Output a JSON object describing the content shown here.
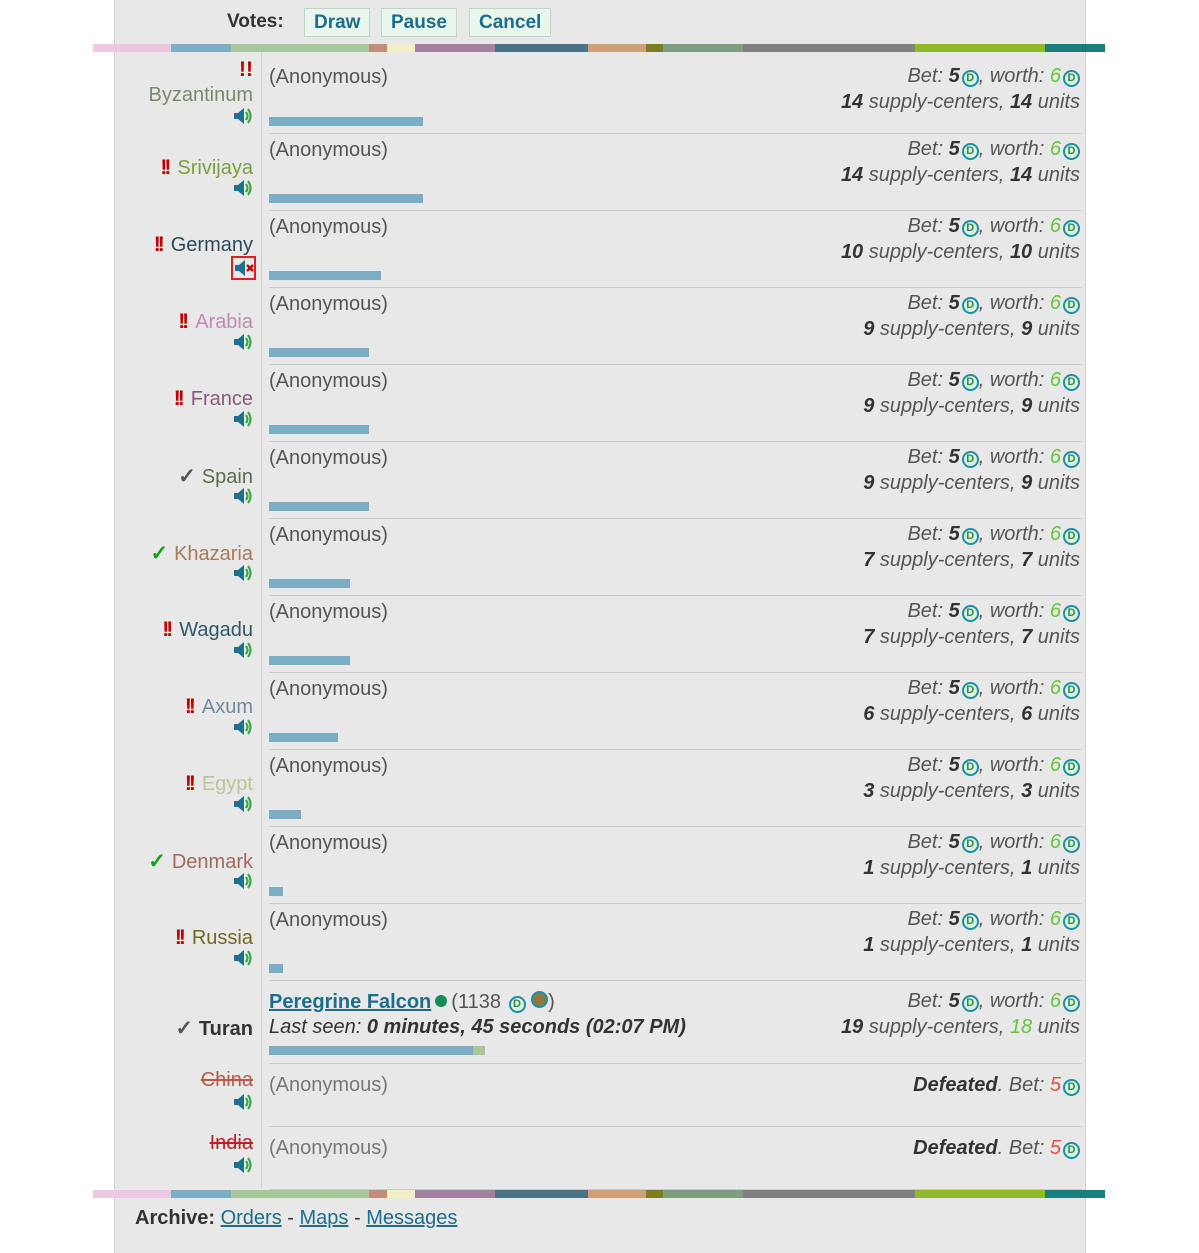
{
  "votes": {
    "label": "Votes:",
    "buttons": [
      "Draw",
      "Pause",
      "Cancel"
    ]
  },
  "stripe_colors": [
    "#eec8e2",
    "#7badc4",
    "#a7c79d",
    "#c28b7a",
    "#f2efc2",
    "#a3809d",
    "#4a7388",
    "#d09f76",
    "#7d7e24",
    "#7e9d7e",
    "#808080",
    "#8fb929",
    "#1a7f7c"
  ],
  "players": [
    {
      "country": "Byzantinum",
      "country_color": "#7a8a6a",
      "status": "!!",
      "status_pos": "above",
      "player": "(Anonymous)",
      "bet": "5",
      "worth": "6",
      "supply": "14",
      "units": "14",
      "bar_pct": 21
    },
    {
      "country": "Srivijaya",
      "country_color": "#7f9e3f",
      "status": "!!",
      "player": "(Anonymous)",
      "bet": "5",
      "worth": "6",
      "supply": "14",
      "units": "14",
      "bar_pct": 21
    },
    {
      "country": "Germany",
      "country_color": "#2d4a5a",
      "status": "!!",
      "muted": true,
      "player": "(Anonymous)",
      "bet": "5",
      "worth": "6",
      "supply": "10",
      "units": "10",
      "bar_pct": 15.3
    },
    {
      "country": "Arabia",
      "country_color": "#c28ab4",
      "status": "!!",
      "player": "(Anonymous)",
      "bet": "5",
      "worth": "6",
      "supply": "9",
      "units": "9",
      "bar_pct": 13.6
    },
    {
      "country": "France",
      "country_color": "#8a5a7e",
      "status": "!!",
      "player": "(Anonymous)",
      "bet": "5",
      "worth": "6",
      "supply": "9",
      "units": "9",
      "bar_pct": 13.6
    },
    {
      "country": "Spain",
      "country_color": "#5a6e4a",
      "status": "✓",
      "status_style": "grey",
      "player": "(Anonymous)",
      "bet": "5",
      "worth": "6",
      "supply": "9",
      "units": "9",
      "bar_pct": 13.6
    },
    {
      "country": "Khazaria",
      "country_color": "#a87c56",
      "status": "✓",
      "status_style": "green",
      "player": "(Anonymous)",
      "bet": "5",
      "worth": "6",
      "supply": "7",
      "units": "7",
      "bar_pct": 11.1
    },
    {
      "country": "Wagadu",
      "country_color": "#2d5a66",
      "status": "!!",
      "player": "(Anonymous)",
      "bet": "5",
      "worth": "6",
      "supply": "7",
      "units": "7",
      "bar_pct": 11.1
    },
    {
      "country": "Axum",
      "country_color": "#6e8ea0",
      "status": "!!",
      "player": "(Anonymous)",
      "bet": "5",
      "worth": "6",
      "supply": "6",
      "units": "6",
      "bar_pct": 9.4
    },
    {
      "country": "Egypt",
      "country_color": "#c2c29a",
      "status": "!!",
      "player": "(Anonymous)",
      "bet": "5",
      "worth": "6",
      "supply": "3",
      "units": "3",
      "bar_pct": 4.4
    },
    {
      "country": "Denmark",
      "country_color": "#a06a5e",
      "status": "✓",
      "status_style": "green",
      "player": "(Anonymous)",
      "bet": "5",
      "worth": "6",
      "supply": "1",
      "units": "1",
      "bar_pct": 1.9
    },
    {
      "country": "Russia",
      "country_color": "#6e6a1e",
      "status": "!!",
      "player": "(Anonymous)",
      "bet": "5",
      "worth": "6",
      "supply": "1",
      "units": "1",
      "bar_pct": 1.9
    }
  ],
  "me": {
    "country": "Turan",
    "status": "✓",
    "name": "Peregrine Falcon",
    "points_open": "(1138",
    "points_close": ")",
    "last_seen_label": "Last seen:",
    "last_seen": "0 minutes, 45 seconds (02:07 PM)",
    "bet": "5",
    "worth": "6",
    "supply": "19",
    "units": "18",
    "bar_pct": 27.8,
    "bar_extra_pct": 1.7
  },
  "defeated": [
    {
      "country": "China",
      "country_color": "#b85a4a",
      "player": "(Anonymous)",
      "defeated_label": "Defeated",
      "bet": "5"
    },
    {
      "country": "India",
      "country_color": "#c02020",
      "player": "(Anonymous)",
      "defeated_label": "Defeated",
      "bet": "5"
    }
  ],
  "labels": {
    "bet": "Bet:",
    "worth": "worth:",
    "supply_centers": "supply-centers,",
    "units": "units",
    "coin": "D"
  },
  "archive": {
    "label": "Archive:",
    "links": [
      "Orders",
      "Maps",
      "Messages"
    ],
    "sep": "-"
  }
}
